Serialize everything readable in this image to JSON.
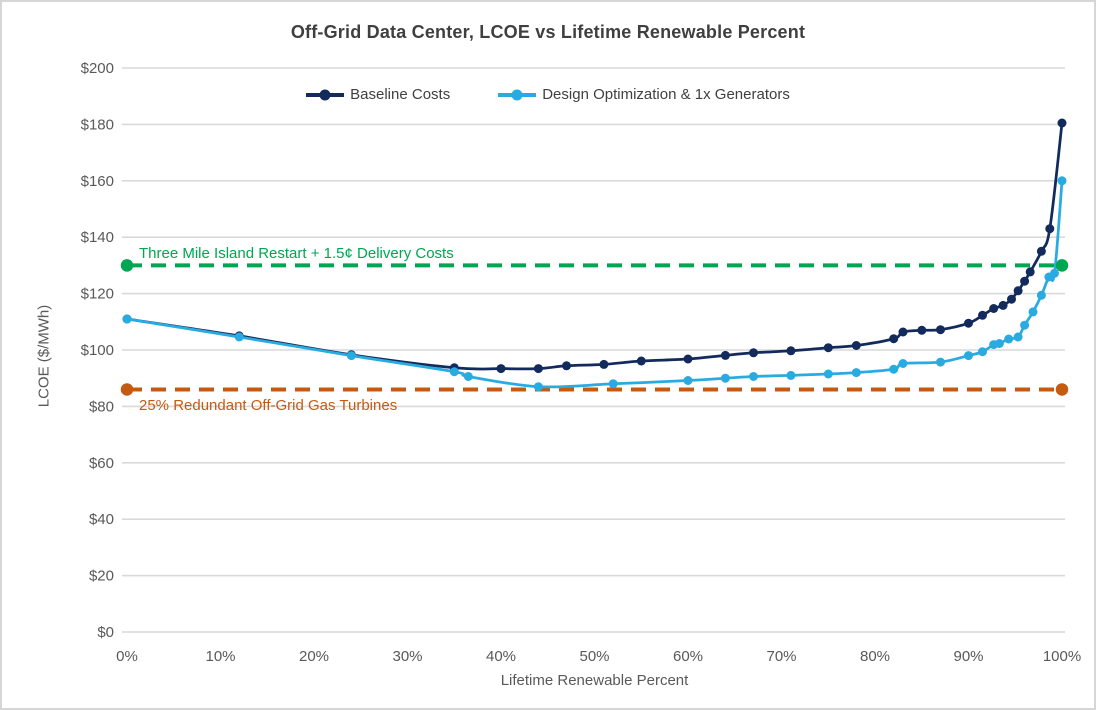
{
  "chart_data": {
    "type": "line",
    "title": "Off-Grid Data Center, LCOE vs Lifetime Renewable Percent",
    "xlabel": "Lifetime Renewable Percent",
    "ylabel": "LCOE ($/MWh)",
    "xlim": [
      0,
      100
    ],
    "ylim": [
      0,
      200
    ],
    "grid": "horizontal",
    "legend_position": "top-center",
    "x_tick_values": [
      0,
      10,
      20,
      30,
      40,
      50,
      60,
      70,
      80,
      90,
      100
    ],
    "x_tick_labels": [
      "0%",
      "10%",
      "20%",
      "30%",
      "40%",
      "50%",
      "60%",
      "70%",
      "80%",
      "90%",
      "100%"
    ],
    "y_tick_values": [
      0,
      20,
      40,
      60,
      80,
      100,
      120,
      140,
      160,
      180,
      200
    ],
    "y_tick_labels": [
      "$0",
      "$20",
      "$40",
      "$60",
      "$80",
      "$100",
      "$120",
      "$140",
      "$160",
      "$180",
      "$200"
    ],
    "series": [
      {
        "name": "Baseline Costs",
        "color": "#132a5c",
        "points": [
          [
            0,
            111
          ],
          [
            12,
            105
          ],
          [
            24,
            98.3
          ],
          [
            35,
            93.7
          ],
          [
            40,
            93.4
          ],
          [
            44,
            93.4
          ],
          [
            47,
            94.4
          ],
          [
            51,
            94.9
          ],
          [
            55,
            96.1
          ],
          [
            60,
            96.8
          ],
          [
            64,
            98.1
          ],
          [
            67,
            99
          ],
          [
            71,
            99.7
          ],
          [
            75,
            100.8
          ],
          [
            78,
            101.6
          ],
          [
            82,
            104
          ],
          [
            83,
            106.4
          ],
          [
            85,
            107
          ],
          [
            87,
            107.2
          ],
          [
            90,
            109.5
          ],
          [
            91.5,
            112.3
          ],
          [
            92.7,
            114.7
          ],
          [
            93.7,
            115.8
          ],
          [
            94.6,
            118
          ],
          [
            95.3,
            121
          ],
          [
            96,
            124.4
          ],
          [
            96.6,
            127.7
          ],
          [
            97.8,
            135
          ],
          [
            98.7,
            143
          ],
          [
            100,
            180.5
          ]
        ]
      },
      {
        "name": "Design Optimization & 1x Generators",
        "color": "#29abe2",
        "points": [
          [
            0,
            111
          ],
          [
            12,
            104.6
          ],
          [
            24,
            98
          ],
          [
            35,
            92.3
          ],
          [
            36.5,
            90.6
          ],
          [
            44,
            87
          ],
          [
            52,
            88
          ],
          [
            60,
            89.2
          ],
          [
            64,
            90
          ],
          [
            67,
            90.6
          ],
          [
            71,
            91
          ],
          [
            75,
            91.5
          ],
          [
            78,
            92
          ],
          [
            82,
            93.2
          ],
          [
            83,
            95.2
          ],
          [
            87,
            95.7
          ],
          [
            90,
            98
          ],
          [
            91.5,
            99.4
          ],
          [
            92.7,
            101.9
          ],
          [
            93.3,
            102.3
          ],
          [
            94.3,
            103.9
          ],
          [
            95.3,
            104.6
          ],
          [
            96,
            108.8
          ],
          [
            96.9,
            113.5
          ],
          [
            97.8,
            119.4
          ],
          [
            98.6,
            125.9
          ],
          [
            99.2,
            127.2
          ],
          [
            100,
            160
          ]
        ]
      }
    ],
    "reference_lines": [
      {
        "label": "Three Mile Island Restart + 1.5¢ Delivery Costs",
        "value": 130,
        "color": "#00a651",
        "style": "dashed",
        "label_position": "above-left"
      },
      {
        "label": "25% Redundant Off-Grid Gas Turbines",
        "value": 86,
        "color": "#c55a11",
        "style": "dashed",
        "label_position": "below-left"
      }
    ],
    "style_colors": {
      "gridline": "#d9d9d9",
      "tick_text": "#595959",
      "title_text": "#3f3f3f",
      "legend_text": "#404040"
    }
  }
}
